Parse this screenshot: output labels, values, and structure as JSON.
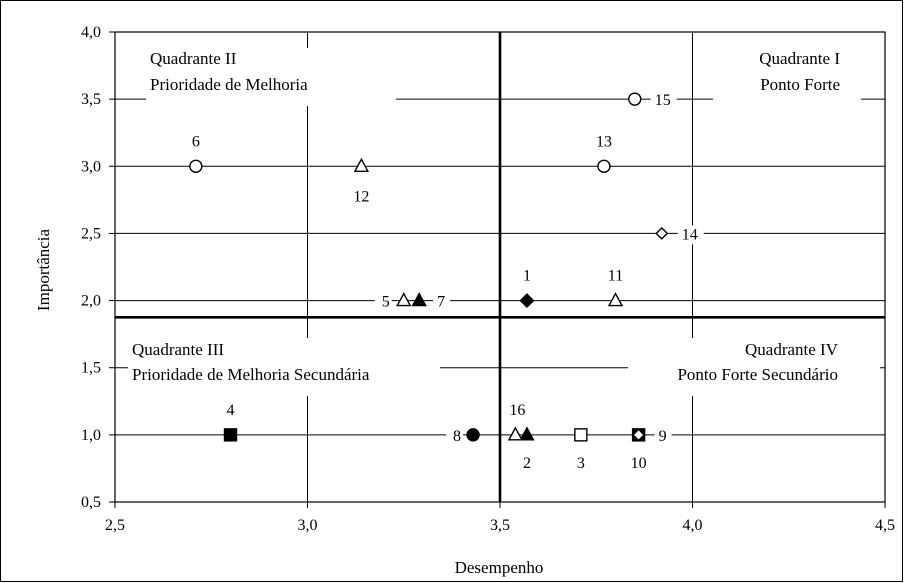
{
  "chart_data": {
    "type": "scatter",
    "title": "",
    "xlabel": "Desempenho",
    "ylabel": "Importância",
    "xlim": [
      2.5,
      4.5
    ],
    "ylim": [
      0.5,
      4.0
    ],
    "xticks": [
      2.5,
      3.0,
      3.5,
      4.0,
      4.5
    ],
    "xtick_labels": [
      "2,5",
      "3,0",
      "3,5",
      "4,0",
      "4,5"
    ],
    "yticks": [
      0.5,
      1.0,
      1.5,
      2.0,
      2.5,
      3.0,
      3.5,
      4.0
    ],
    "ytick_labels": [
      "0,5",
      "1,0",
      "1,5",
      "2,0",
      "2,5",
      "3,0",
      "3,5",
      "4,0"
    ],
    "grid": true,
    "quadrant_divider": {
      "x": 3.5,
      "y": 1.875
    },
    "quadrants": [
      {
        "id": "q2",
        "line1": "Quadrante II",
        "line2": "Prioridade de Melhoria"
      },
      {
        "id": "q1",
        "line1": "Quadrante I",
        "line2": "Ponto Forte"
      },
      {
        "id": "q3",
        "line1": "Quadrante III",
        "line2": "Prioridade de Melhoria Secundária"
      },
      {
        "id": "q4",
        "line1": "Quadrante IV",
        "line2": "Ponto Forte Secundário"
      }
    ],
    "points": [
      {
        "label": "1",
        "x": 3.57,
        "y": 2.0,
        "marker": "diamond",
        "filled": true
      },
      {
        "label": "2",
        "x": 3.57,
        "y": 1.0,
        "marker": "triangle",
        "filled": true
      },
      {
        "label": "3",
        "x": 3.71,
        "y": 1.0,
        "marker": "square",
        "filled": false
      },
      {
        "label": "4",
        "x": 2.8,
        "y": 1.0,
        "marker": "square",
        "filled": true
      },
      {
        "label": "5",
        "x": 3.25,
        "y": 2.0,
        "marker": "triangle",
        "filled": false
      },
      {
        "label": "6",
        "x": 2.71,
        "y": 3.0,
        "marker": "circle",
        "filled": false
      },
      {
        "label": "7",
        "x": 3.29,
        "y": 2.0,
        "marker": "triangle",
        "filled": true
      },
      {
        "label": "8",
        "x": 3.43,
        "y": 1.0,
        "marker": "circle",
        "filled": true
      },
      {
        "label": "9",
        "x": 3.86,
        "y": 1.0,
        "marker": "square",
        "filled": true
      },
      {
        "label": "10",
        "x": 3.86,
        "y": 1.0,
        "marker": "diamond",
        "filled": false
      },
      {
        "label": "11",
        "x": 3.8,
        "y": 2.0,
        "marker": "triangle",
        "filled": false
      },
      {
        "label": "12",
        "x": 3.14,
        "y": 3.0,
        "marker": "triangle",
        "filled": false
      },
      {
        "label": "13",
        "x": 3.77,
        "y": 3.0,
        "marker": "circle",
        "filled": false
      },
      {
        "label": "14",
        "x": 3.92,
        "y": 2.5,
        "marker": "diamond",
        "filled": false
      },
      {
        "label": "15",
        "x": 3.85,
        "y": 3.5,
        "marker": "circle",
        "filled": false
      },
      {
        "label": "16",
        "x": 3.54,
        "y": 1.0,
        "marker": "triangle",
        "filled": false
      }
    ]
  }
}
